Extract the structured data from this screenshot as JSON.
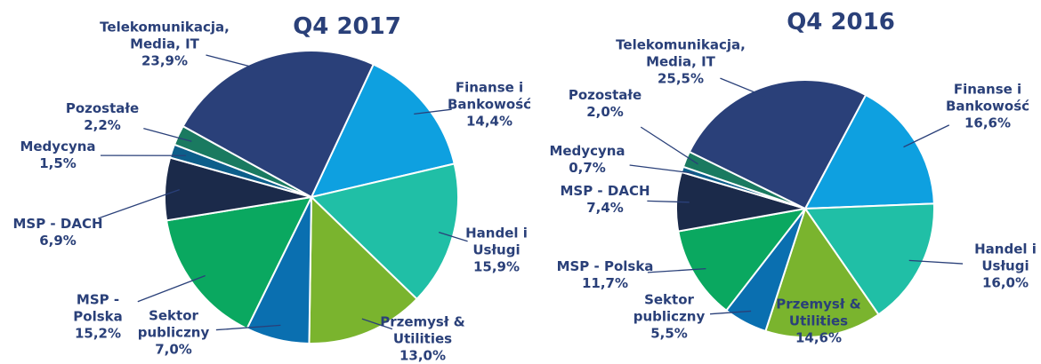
{
  "chart_data": [
    {
      "type": "pie",
      "title": "Q4 2017",
      "categories": [
        "Finanse i Bankowość",
        "Handel i Usługi",
        "Przemysł & Utilities",
        "Sektor publiczny",
        "MSP - Polska",
        "MSP - DACH",
        "Medycyna",
        "Pozostałe",
        "Telekomunikacja, Media, IT"
      ],
      "values": [
        14.4,
        15.9,
        13.0,
        7.0,
        15.2,
        6.9,
        1.5,
        2.2,
        23.9
      ],
      "value_labels": [
        "14,4%",
        "15,9%",
        "13,0%",
        "7,0%",
        "15,2%",
        "6,9%",
        "1,5%",
        "2,2%",
        "23,9%"
      ],
      "colors": [
        "#0ea0e0",
        "#20bfa6",
        "#7ab42e",
        "#0a6fb0",
        "#0aa860",
        "#1b2a4a",
        "#0d5e8a",
        "#1a7a60",
        "#2a4079"
      ]
    },
    {
      "type": "pie",
      "title": "Q4 2016",
      "categories": [
        "Finanse i Bankowość",
        "Handel i Usługi",
        "Przemysł & Utilities",
        "Sektor publiczny",
        "MSP - Polska",
        "MSP - DACH",
        "Medycyna",
        "Pozostałe",
        "Telekomunikacja, Media, IT"
      ],
      "values": [
        16.6,
        16.0,
        14.6,
        5.5,
        11.7,
        7.4,
        0.7,
        2.0,
        25.5
      ],
      "value_labels": [
        "16,6%",
        "16,0%",
        "14,6%",
        "5,5%",
        "11,7%",
        "7,4%",
        "0,7%",
        "2,0%",
        "25,5%"
      ],
      "colors": [
        "#0ea0e0",
        "#20bfa6",
        "#7ab42e",
        "#0a6fb0",
        "#0aa860",
        "#1b2a4a",
        "#0d5e8a",
        "#1a7a60",
        "#2a4079"
      ]
    }
  ]
}
